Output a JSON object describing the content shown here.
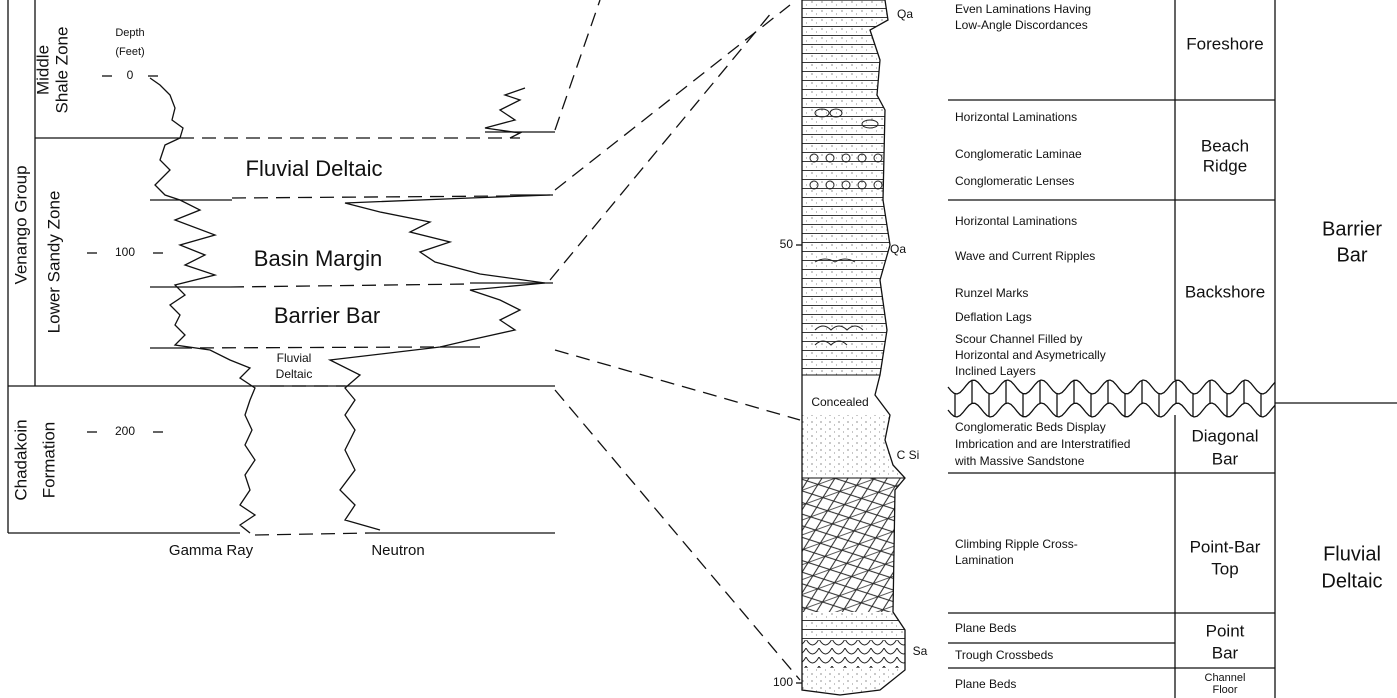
{
  "log_section": {
    "units": [
      {
        "lines": [
          "Venango Group"
        ]
      },
      {
        "lines": [
          "Middle",
          "Shale Zone"
        ]
      },
      {
        "lines": [
          "Lower Sandy Zone"
        ]
      },
      {
        "lines": [
          "Chadakoin",
          "Formation"
        ]
      }
    ],
    "depth_label": [
      "Depth",
      "(Feet)"
    ],
    "depth_ticks": [
      0,
      100,
      200
    ],
    "intervals": [
      {
        "lines": [
          "Fluvial Deltaic"
        ]
      },
      {
        "lines": [
          "Basin Margin"
        ]
      },
      {
        "lines": [
          "Barrier Bar"
        ]
      },
      {
        "lines": [
          "Fluvial",
          "Deltaic"
        ]
      }
    ],
    "curves": [
      "Gamma Ray",
      "Neutron"
    ]
  },
  "column": {
    "depth_ticks": [
      50,
      100
    ],
    "labels": [
      "Qa",
      "Qa",
      "Concealed",
      "C Si",
      "Sa"
    ]
  },
  "facies_table": {
    "rows": [
      {
        "structures": [
          [
            "Even Laminations Having",
            "Low-Angle Discordances"
          ]
        ],
        "facies": [
          "Foreshore"
        ]
      },
      {
        "structures": [
          [
            "Horizontal Laminations"
          ],
          [
            "Conglomeratic Laminae"
          ],
          [
            "Conglomeratic Lenses"
          ]
        ],
        "facies": [
          "Beach",
          "Ridge"
        ]
      },
      {
        "structures": [
          [
            "Horizontal Laminations"
          ],
          [
            "Wave and Current Ripples"
          ],
          [
            "Runzel Marks"
          ],
          [
            "Deflation Lags"
          ],
          [
            "Scour Channel Filled by",
            "Horizontal and Asymetrically",
            "Inclined Layers"
          ]
        ],
        "facies": [
          "Backshore"
        ]
      },
      {
        "structures": [
          [
            "Conglomeratic Beds Display",
            "Imbrication and are Interstratified",
            "with Massive Sandstone"
          ]
        ],
        "facies": [
          "Diagonal",
          "Bar"
        ]
      },
      {
        "structures": [
          [
            "Climbing Ripple Cross-",
            "Lamination"
          ]
        ],
        "facies": [
          "Point-Bar",
          "Top"
        ]
      },
      {
        "structures": [
          [
            "Plane Beds"
          ],
          [
            "Trough Crossbeds"
          ]
        ],
        "facies": [
          "Point",
          "Bar"
        ]
      },
      {
        "structures": [
          [
            "Plane Beds"
          ]
        ],
        "facies": [
          "Channel",
          "Floor"
        ]
      }
    ],
    "environments": [
      {
        "lines": [
          "Barrier",
          "Bar"
        ]
      },
      {
        "lines": [
          "Fluvial",
          "Deltaic"
        ]
      }
    ]
  }
}
